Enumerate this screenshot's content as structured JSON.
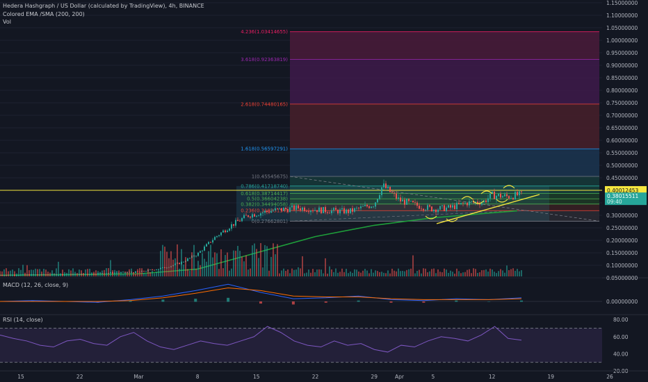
{
  "legend": {
    "main": "Hedera Hashgraph / US Dollar (calculated by TradingView), 4h, BINANCE",
    "ema": "Colored EMA /SMA (200, 200)",
    "vol": "Vol",
    "macd": "MACD (12, 26, close, 9)",
    "rsi": "RSI (14, close)"
  },
  "colors": {
    "background": "#131722",
    "candle_up": "#26a69a",
    "candle_down": "#ef5350",
    "ema": "#1e9e3a",
    "hline": "#f6e73f",
    "trendline": "#f6e73f",
    "macd_line": "#2962ff",
    "signal_line": "#ff6d00",
    "rsi_line": "#7e57c2"
  },
  "chart_data": [
    {
      "type": "candlestick",
      "title": "Hedera Hashgraph / US Dollar (calculated by TradingView), 4h, BINANCE",
      "x_tick_labels": [
        "15",
        "22",
        "Mar",
        "8",
        "15",
        "22",
        "29",
        "Apr",
        "5",
        "12",
        "19",
        "26"
      ],
      "y_tick_labels": [
        "1.15000000",
        "1.10000000",
        "1.05000000",
        "1.00000000",
        "0.95000000",
        "0.90000000",
        "0.85000000",
        "0.80000000",
        "0.75000000",
        "0.70000000",
        "0.65000000",
        "0.60000000",
        "0.55000000",
        "0.50000000",
        "0.45000000",
        "0.40000000",
        "0.35000000",
        "0.30000000",
        "0.25000000",
        "0.20000000",
        "0.15000000",
        "0.10000000",
        "0.05000000"
      ],
      "ylim": [
        0.05,
        1.15
      ],
      "price_series": {
        "name": "HBARUSD",
        "points": [
          {
            "date": "Feb 11",
            "close": 0.06
          },
          {
            "date": "Feb 15",
            "close": 0.062
          },
          {
            "date": "Feb 19",
            "close": 0.063
          },
          {
            "date": "Feb 22",
            "close": 0.064
          },
          {
            "date": "Feb 26",
            "close": 0.07
          },
          {
            "date": "Mar 1",
            "close": 0.073
          },
          {
            "date": "Mar 4",
            "close": 0.09
          },
          {
            "date": "Mar 6",
            "close": 0.11
          },
          {
            "date": "Mar 8",
            "close": 0.145
          },
          {
            "date": "Mar 10",
            "close": 0.21
          },
          {
            "date": "Mar 12",
            "close": 0.26
          },
          {
            "date": "Mar 14",
            "close": 0.3
          },
          {
            "date": "Mar 17",
            "close": 0.32
          },
          {
            "date": "Mar 20",
            "close": 0.33
          },
          {
            "date": "Mar 23",
            "close": 0.32
          },
          {
            "date": "Mar 26",
            "close": 0.315
          },
          {
            "date": "Mar 29",
            "close": 0.345
          },
          {
            "date": "Mar 30",
            "close": 0.42
          },
          {
            "date": "Apr 1",
            "close": 0.36
          },
          {
            "date": "Apr 3",
            "close": 0.34
          },
          {
            "date": "Apr 5",
            "close": 0.325
          },
          {
            "date": "Apr 7",
            "close": 0.33
          },
          {
            "date": "Apr 9",
            "close": 0.35
          },
          {
            "date": "Apr 11",
            "close": 0.355
          },
          {
            "date": "Apr 12",
            "close": 0.38
          },
          {
            "date": "Apr 14",
            "close": 0.375
          },
          {
            "date": "Apr 15",
            "close": 0.381
          }
        ]
      },
      "ema_series": {
        "name": "Colored EMA /SMA (200, 200)",
        "points": [
          {
            "date": "Feb 11",
            "value": 0.06
          },
          {
            "date": "Feb 22",
            "value": 0.063
          },
          {
            "date": "Mar 1",
            "value": 0.066
          },
          {
            "date": "Mar 8",
            "value": 0.085
          },
          {
            "date": "Mar 15",
            "value": 0.15
          },
          {
            "date": "Mar 22",
            "value": 0.215
          },
          {
            "date": "Mar 29",
            "value": 0.26
          },
          {
            "date": "Apr 5",
            "value": 0.29
          },
          {
            "date": "Apr 12",
            "value": 0.31
          },
          {
            "date": "Apr 15",
            "value": 0.318
          }
        ]
      },
      "fib_extension": {
        "levels": [
          {
            "label": "4.236(1.03414655)",
            "value": 1.03414655,
            "color": "#e91e63"
          },
          {
            "label": "3.618(0.92363819)",
            "value": 0.92363819,
            "color": "#9c27b0"
          },
          {
            "label": "2.618(0.74480165)",
            "value": 0.74480165,
            "color": "#f44336"
          },
          {
            "label": "1.618(0.56597291)",
            "value": 0.56597291,
            "color": "#2196f3"
          },
          {
            "label": "1(0.45545675)",
            "value": 0.45545675,
            "color": "#787b86"
          },
          {
            "label": "0.786(0.41718740)",
            "value": 0.4171874,
            "color": "#26a69a"
          },
          {
            "label": "0.618(0.38714417)",
            "value": 0.38714417,
            "color": "#4caf50"
          },
          {
            "label": "0.5(0.36604238)",
            "value": 0.36604238,
            "color": "#4caf50"
          },
          {
            "label": "0.382(0.34494058)",
            "value": 0.34494058,
            "color": "#4caf50"
          },
          {
            "label": "0.236(0.31883154)",
            "value": 0.31883154,
            "color": "#f44336"
          },
          {
            "label": "0(0.27662801)",
            "value": 0.27662801,
            "color": "#787b86"
          }
        ]
      },
      "horizontal_line": {
        "value": 0.40012453,
        "label": "0.40012453"
      },
      "last_price": {
        "value": 0.38015511,
        "label": "0.38015511",
        "sub_label": "09:40"
      }
    },
    {
      "type": "bar",
      "title": "Vol",
      "note": "volume histogram, unlabeled"
    },
    {
      "type": "line",
      "title": "MACD (12, 26, close, 9)",
      "y_tick_labels": [
        "0.00000000"
      ],
      "series": [
        {
          "name": "MACD",
          "values": [
            0.0,
            0.001,
            0.0,
            -0.001,
            0.002,
            0.006,
            0.012,
            0.019,
            0.01,
            0.003,
            0.004,
            0.006,
            0.002,
            0.001,
            0.003,
            0.002,
            0.004
          ]
        },
        {
          "name": "Signal",
          "values": [
            0.0,
            0.0,
            0.0,
            0.0,
            0.001,
            0.004,
            0.009,
            0.015,
            0.012,
            0.006,
            0.005,
            0.005,
            0.003,
            0.002,
            0.002,
            0.002,
            0.003
          ]
        }
      ]
    },
    {
      "type": "line",
      "title": "RSI (14, close)",
      "y_tick_labels": [
        "80.00",
        "60.00",
        "40.00",
        "20.00"
      ],
      "ylim": [
        20,
        85
      ],
      "bands": [
        30,
        70
      ],
      "series": [
        {
          "name": "RSI",
          "values": [
            62,
            58,
            55,
            50,
            48,
            55,
            57,
            52,
            50,
            60,
            65,
            55,
            48,
            45,
            50,
            55,
            52,
            50,
            55,
            60,
            72,
            65,
            55,
            50,
            48,
            55,
            50,
            52,
            45,
            42,
            50,
            48,
            55,
            60,
            58,
            55,
            62,
            72,
            58,
            56
          ]
        }
      ]
    }
  ],
  "price_tags": {
    "hline": "0.40012453",
    "last": "0.38015511",
    "last_time": "09:40"
  }
}
